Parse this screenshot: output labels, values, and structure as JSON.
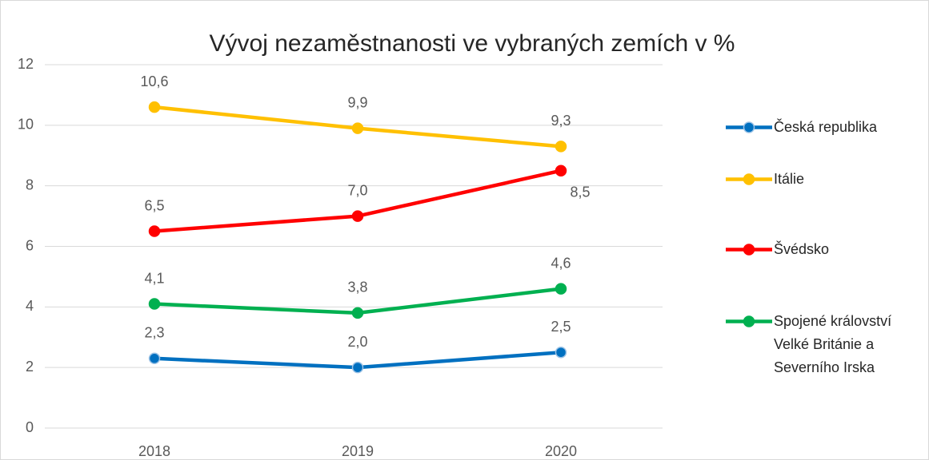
{
  "chart_data": {
    "type": "line",
    "title": "Vývoj nezaměstnanosti ve vybraných zemích v %",
    "categories": [
      "2018",
      "2019",
      "2020"
    ],
    "ylim": [
      0,
      12
    ],
    "yticks": [
      0,
      2,
      4,
      6,
      8,
      10,
      12
    ],
    "grid": true,
    "legend": "right",
    "series": [
      {
        "name": "Česká republika",
        "color": "#0070c0",
        "values": [
          2.3,
          2.0,
          2.5
        ],
        "value_labels": [
          "2,3",
          "2,0",
          "2,5"
        ]
      },
      {
        "name": "Itálie",
        "color": "#ffc000",
        "values": [
          10.6,
          9.9,
          9.3
        ],
        "value_labels": [
          "10,6",
          "9,9",
          "9,3"
        ]
      },
      {
        "name": "Švédsko",
        "color": "#ff0000",
        "values": [
          6.5,
          7.0,
          8.5
        ],
        "value_labels": [
          "6,5",
          "7,0",
          "8,5"
        ]
      },
      {
        "name": "Spojené království Velké Británie a Severního Irska",
        "color": "#00b050",
        "values": [
          4.1,
          3.8,
          4.6
        ],
        "value_labels": [
          "4,1",
          "3,8",
          "4,6"
        ]
      }
    ]
  }
}
